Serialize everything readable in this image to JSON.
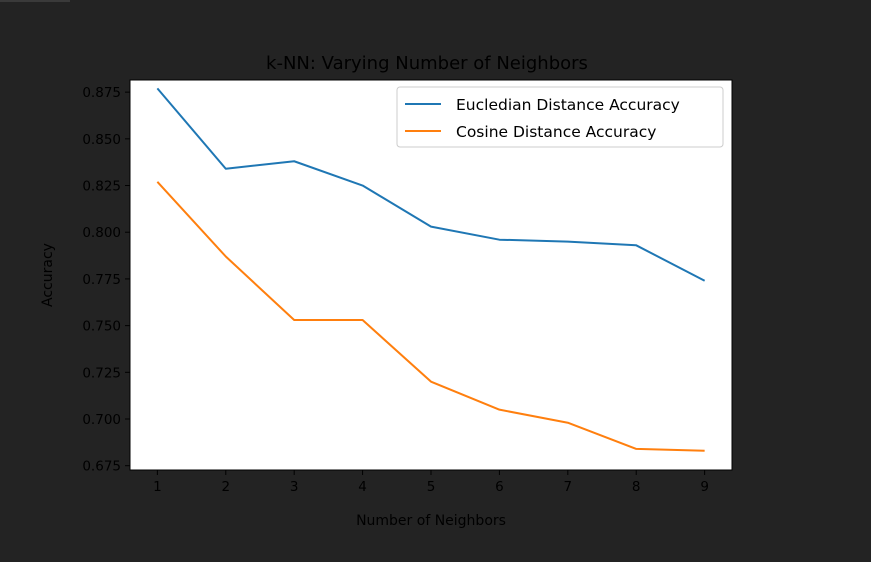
{
  "chart_data": {
    "type": "line",
    "title": "k-NN: Varying Number of Neighbors",
    "xlabel": "Number of Neighbors",
    "ylabel": "Accuracy",
    "x": [
      1,
      2,
      3,
      4,
      5,
      6,
      7,
      8,
      9
    ],
    "xticks": [
      "1",
      "2",
      "3",
      "4",
      "5",
      "6",
      "7",
      "8",
      "9"
    ],
    "yticks": [
      "0.675",
      "0.700",
      "0.725",
      "0.750",
      "0.775",
      "0.800",
      "0.825",
      "0.850",
      "0.875"
    ],
    "ytick_values": [
      0.675,
      0.7,
      0.725,
      0.75,
      0.775,
      0.8,
      0.825,
      0.85,
      0.875
    ],
    "xlim": [
      0.6,
      9.4
    ],
    "ylim": [
      0.6727,
      0.8815
    ],
    "grid": false,
    "legend_position": "upper-right",
    "series": [
      {
        "name": "Eucledian Distance Accuracy",
        "color": "#1f77b4",
        "values": [
          0.877,
          0.834,
          0.838,
          0.825,
          0.803,
          0.796,
          0.795,
          0.793,
          0.774
        ]
      },
      {
        "name": "Cosine Distance Accuracy",
        "color": "#ff7f0e",
        "values": [
          0.827,
          0.787,
          0.753,
          0.753,
          0.72,
          0.705,
          0.698,
          0.684,
          0.683
        ]
      }
    ]
  }
}
